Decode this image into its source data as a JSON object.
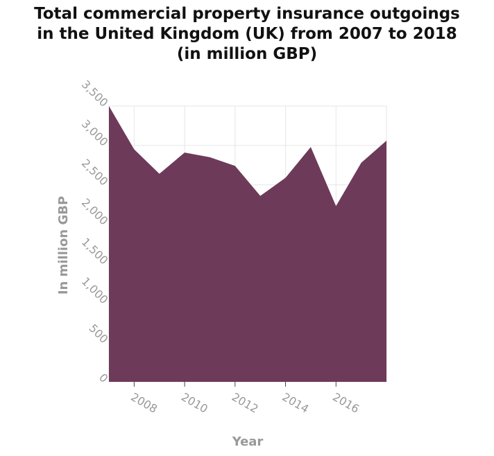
{
  "title_lines": [
    "Total commercial property insurance outgoings",
    "in the United Kingdom (UK) from 2007 to 2018",
    "(in million GBP)"
  ],
  "chart_data": {
    "type": "area",
    "title": "Total commercial property insurance outgoings in the United Kingdom (UK) from 2007 to 2018 (in million GBP)",
    "xlabel": "Year",
    "ylabel": "In million GBP",
    "x": [
      2007,
      2008,
      2009,
      2010,
      2011,
      2012,
      2013,
      2014,
      2015,
      2016,
      2017,
      2018
    ],
    "values": [
      3500,
      2950,
      2640,
      2910,
      2850,
      2740,
      2360,
      2590,
      2980,
      2230,
      2780,
      3060
    ],
    "xlim": [
      2007,
      2018
    ],
    "ylim": [
      0,
      3500
    ],
    "x_ticks": [
      "2008",
      "2010",
      "2012",
      "2014",
      "2016"
    ],
    "x_tick_values": [
      2008,
      2010,
      2012,
      2014,
      2016
    ],
    "y_ticks": [
      "0",
      "500",
      "1,000",
      "1,500",
      "2,000",
      "2,500",
      "3,000",
      "3,500"
    ],
    "y_tick_values": [
      0,
      500,
      1000,
      1500,
      2000,
      2500,
      3000,
      3500
    ],
    "grid": true,
    "fill_color": "#6d3a5a",
    "grid_color": "#e6e6e6"
  }
}
